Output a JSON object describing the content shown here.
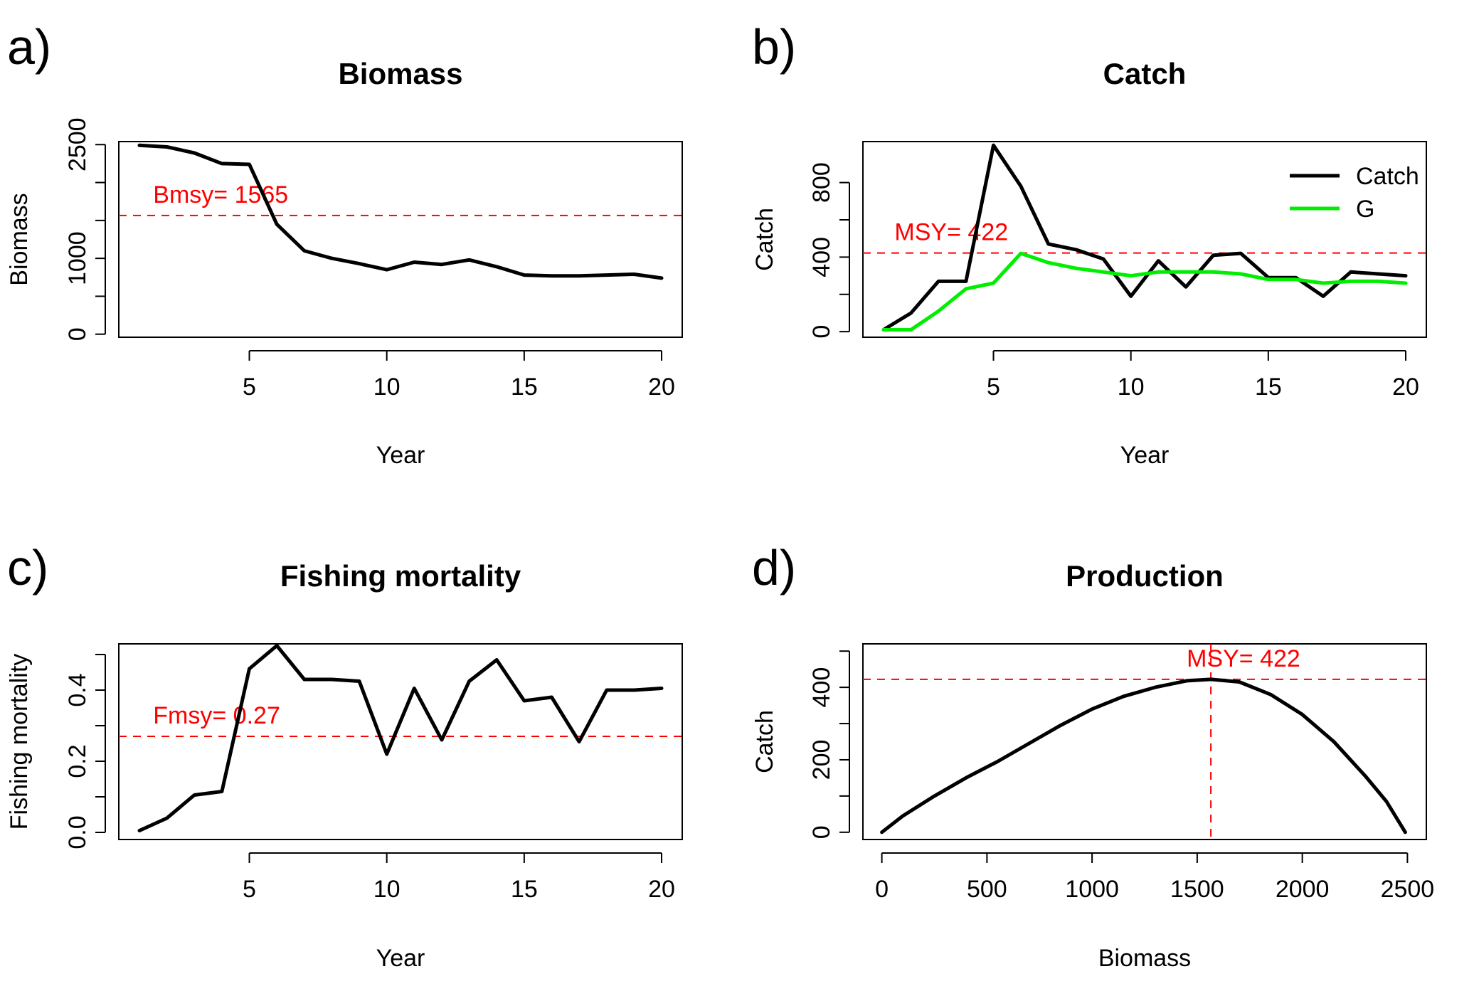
{
  "colors": {
    "reference": "#ff0000",
    "main_line": "#000000",
    "growth_line": "#00ee00"
  },
  "chart_data": [
    {
      "panel": "a)",
      "type": "line",
      "title": "Biomass",
      "xlabel": "Year",
      "ylabel": "Biomass",
      "xlim": [
        0.25,
        20.75
      ],
      "ylim": [
        -40,
        2540
      ],
      "xticks": [
        5,
        10,
        15,
        20
      ],
      "yticks": [
        0,
        500,
        1000,
        1500,
        2000,
        2500
      ],
      "ytick_labels": [
        "0",
        "",
        "1000",
        "",
        "",
        "2500"
      ],
      "grid": false,
      "series": [
        {
          "color": "#000000",
          "x": [
            1,
            2,
            3,
            4,
            5,
            6,
            7,
            8,
            9,
            10,
            11,
            12,
            13,
            14,
            15,
            16,
            17,
            18,
            19,
            20
          ],
          "y": [
            2490,
            2470,
            2390,
            2250,
            2240,
            1450,
            1100,
            1000,
            930,
            850,
            950,
            920,
            980,
            890,
            780,
            770,
            770,
            780,
            790,
            740
          ]
        }
      ],
      "hlines": [
        {
          "y": 1565,
          "label": "Bmsy= 1565",
          "label_x": 1.5
        }
      ],
      "vlines": []
    },
    {
      "panel": "b)",
      "type": "line",
      "title": "Catch",
      "xlabel": "Year",
      "ylabel": "Catch",
      "xlim": [
        0.25,
        20.75
      ],
      "ylim": [
        -30,
        1020
      ],
      "xticks": [
        5,
        10,
        15,
        20
      ],
      "yticks": [
        0,
        200,
        400,
        600,
        800
      ],
      "ytick_labels": [
        "0",
        "",
        "400",
        "",
        "800"
      ],
      "grid": false,
      "legend": {
        "position": "top-right",
        "entries": [
          "Catch",
          "G"
        ]
      },
      "series": [
        {
          "name": "Catch",
          "color": "#000000",
          "x": [
            1,
            2,
            3,
            4,
            5,
            6,
            7,
            8,
            9,
            10,
            11,
            12,
            13,
            14,
            15,
            16,
            17,
            18,
            19,
            20
          ],
          "y": [
            10,
            100,
            270,
            270,
            1000,
            780,
            470,
            440,
            390,
            190,
            380,
            240,
            410,
            420,
            290,
            290,
            190,
            320,
            310,
            300
          ]
        },
        {
          "name": "G",
          "color": "#00ee00",
          "x": [
            1,
            2,
            3,
            4,
            5,
            6,
            7,
            8,
            9,
            10,
            11,
            12,
            13,
            14,
            15,
            16,
            17,
            18,
            19,
            20
          ],
          "y": [
            10,
            10,
            110,
            230,
            260,
            420,
            370,
            340,
            320,
            300,
            320,
            320,
            320,
            310,
            280,
            280,
            260,
            270,
            270,
            260
          ]
        }
      ],
      "hlines": [
        {
          "y": 422,
          "label": "MSY= 422",
          "label_x": 1.4
        }
      ],
      "vlines": []
    },
    {
      "panel": "c)",
      "type": "line",
      "title": "Fishing mortality",
      "xlabel": "Year",
      "ylabel": "Fishing mortality",
      "xlim": [
        0.25,
        20.75
      ],
      "ylim": [
        -0.02,
        0.53
      ],
      "xticks": [
        5,
        10,
        15,
        20
      ],
      "yticks": [
        0,
        0.1,
        0.2,
        0.3,
        0.4,
        0.5
      ],
      "ytick_labels": [
        "0.0",
        "",
        "0.2",
        "",
        "0.4",
        ""
      ],
      "grid": false,
      "series": [
        {
          "color": "#000000",
          "x": [
            1,
            2,
            3,
            4,
            5,
            6,
            7,
            8,
            9,
            10,
            11,
            12,
            13,
            14,
            15,
            16,
            17,
            18,
            19,
            20
          ],
          "y": [
            0.005,
            0.04,
            0.105,
            0.115,
            0.46,
            0.525,
            0.43,
            0.43,
            0.425,
            0.22,
            0.405,
            0.26,
            0.425,
            0.485,
            0.37,
            0.38,
            0.255,
            0.4,
            0.4,
            0.405
          ]
        }
      ],
      "hlines": [
        {
          "y": 0.27,
          "label": "Fmsy= 0.27",
          "label_x": 1.5
        }
      ],
      "vlines": []
    },
    {
      "panel": "d)",
      "type": "line",
      "title": "Production",
      "xlabel": "Biomass",
      "ylabel": "Catch",
      "xlim": [
        -90,
        2590
      ],
      "ylim": [
        -20,
        520
      ],
      "xticks": [
        0,
        500,
        1000,
        1500,
        2000,
        2500
      ],
      "yticks": [
        0,
        100,
        200,
        300,
        400,
        500
      ],
      "ytick_labels": [
        "0",
        "",
        "200",
        "",
        "400",
        ""
      ],
      "grid": false,
      "series": [
        {
          "color": "#000000",
          "x": [
            0,
            100,
            250,
            400,
            550,
            700,
            850,
            1000,
            1150,
            1300,
            1450,
            1565,
            1700,
            1850,
            2000,
            2150,
            2300,
            2400,
            2490
          ],
          "y": [
            0,
            45,
            100,
            150,
            195,
            245,
            295,
            340,
            375,
            400,
            418,
            422,
            415,
            380,
            325,
            250,
            155,
            85,
            0
          ]
        }
      ],
      "hlines": [
        {
          "y": 422,
          "label": "MSY= 422",
          "label_x": 1450
        }
      ],
      "vlines": [
        {
          "x": 1565
        }
      ]
    }
  ]
}
